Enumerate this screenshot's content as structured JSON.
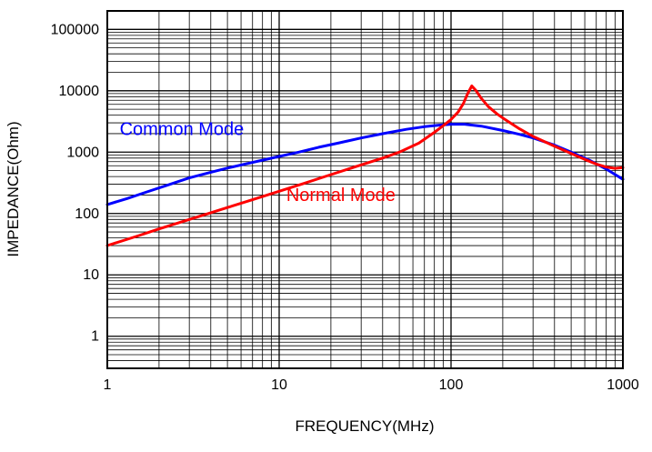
{
  "page": {
    "background": "#ffffff"
  },
  "chart_data": {
    "type": "line",
    "title": "",
    "xlabel": "FREQUENCY(MHz)",
    "ylabel": "IMPEDANCE(Ohm)",
    "x_scale": "log",
    "y_scale": "log",
    "xlim": [
      1,
      1000
    ],
    "ylim": [
      0.3,
      200000
    ],
    "x_ticks": [
      "1",
      "10",
      "100",
      "1000"
    ],
    "y_ticks": [
      "1",
      "10",
      "100",
      "1000",
      "10000",
      "100000"
    ],
    "grid": "log major and minor gridlines, black, on",
    "legend_position": "inline-annotations",
    "series": [
      {
        "name": "Common Mode",
        "color": "#0000ff",
        "points": [
          [
            1,
            140
          ],
          [
            1.3,
            175
          ],
          [
            1.7,
            225
          ],
          [
            2.2,
            285
          ],
          [
            3,
            380
          ],
          [
            4,
            470
          ],
          [
            5,
            550
          ],
          [
            6.5,
            650
          ],
          [
            8,
            740
          ],
          [
            10,
            850
          ],
          [
            13,
            1000
          ],
          [
            17,
            1200
          ],
          [
            22,
            1400
          ],
          [
            30,
            1700
          ],
          [
            40,
            2000
          ],
          [
            55,
            2350
          ],
          [
            70,
            2600
          ],
          [
            85,
            2750
          ],
          [
            100,
            2850
          ],
          [
            120,
            2850
          ],
          [
            150,
            2650
          ],
          [
            200,
            2250
          ],
          [
            250,
            1950
          ],
          [
            300,
            1700
          ],
          [
            400,
            1300
          ],
          [
            500,
            1000
          ],
          [
            650,
            720
          ],
          [
            800,
            530
          ],
          [
            1000,
            360
          ]
        ]
      },
      {
        "name": "Normal Mode",
        "color": "#ff0000",
        "points": [
          [
            1,
            30
          ],
          [
            1.5,
            43
          ],
          [
            2,
            56
          ],
          [
            3,
            80
          ],
          [
            4,
            103
          ],
          [
            5,
            125
          ],
          [
            7,
            168
          ],
          [
            10,
            230
          ],
          [
            14,
            310
          ],
          [
            20,
            430
          ],
          [
            30,
            620
          ],
          [
            40,
            800
          ],
          [
            50,
            1000
          ],
          [
            65,
            1400
          ],
          [
            80,
            2100
          ],
          [
            90,
            2700
          ],
          [
            100,
            3400
          ],
          [
            110,
            4500
          ],
          [
            118,
            6200
          ],
          [
            125,
            9000
          ],
          [
            132,
            12000
          ],
          [
            140,
            10000
          ],
          [
            150,
            7500
          ],
          [
            165,
            5500
          ],
          [
            185,
            4200
          ],
          [
            200,
            3600
          ],
          [
            250,
            2400
          ],
          [
            300,
            1800
          ],
          [
            400,
            1250
          ],
          [
            500,
            950
          ],
          [
            600,
            760
          ],
          [
            700,
            640
          ],
          [
            800,
            570
          ],
          [
            900,
            545
          ],
          [
            1000,
            560
          ]
        ]
      }
    ],
    "annotations": [
      {
        "text": "Common Mode",
        "x": 1.18,
        "y": 1900,
        "color": "#0000ff"
      },
      {
        "text": "Normal Mode",
        "x": 11,
        "y": 160,
        "color": "#ff0000"
      }
    ]
  }
}
